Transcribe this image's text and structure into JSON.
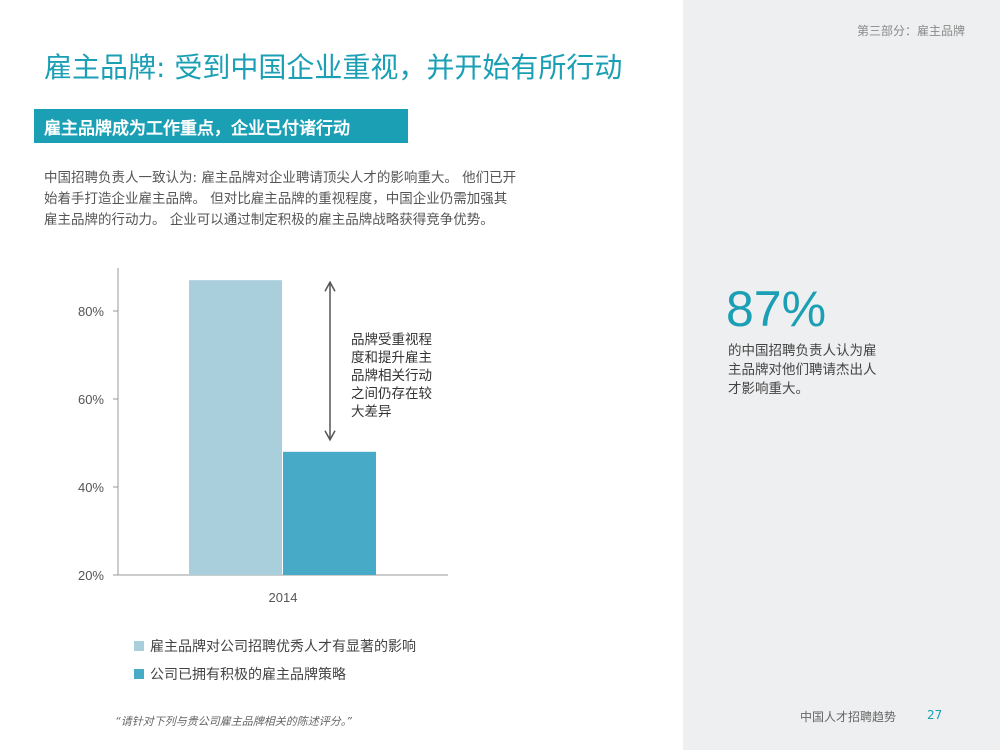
{
  "header": {
    "section_label": "第三部分：雇主品牌",
    "title": "雇主品牌: 受到中国企业重视，并开始有所行动",
    "subhead": "雇主品牌成为工作重点，企业已付诸行动"
  },
  "body_lines": [
    "中国招聘负责人一致认为: 雇主品牌对企业聘请顶尖人才的影响重大。 他们已开",
    "始着手打造企业雇主品牌。 但对比雇主品牌的重视程度，中国企业仍需加强其",
    "雇主品牌的行动力。 企业可以通过制定积极的雇主品牌战略获得竞争优势。"
  ],
  "stat": {
    "value": "87%",
    "lines": [
      "的中国招聘负责人认为雇",
      "主品牌对他们聘请杰出人",
      "才影响重大。"
    ]
  },
  "annotation_lines": [
    "品牌受重视程",
    "度和提升雇主",
    "品牌相关行动",
    "之间仍存在较",
    "大差异"
  ],
  "footnote": "“请针对下列与贵公司雇主品牌相关的陈述评分。”",
  "footer": {
    "title": "中国人才招聘趋势",
    "page": "27"
  },
  "chart_data": {
    "type": "bar",
    "categories": [
      "2014"
    ],
    "series": [
      {
        "name": "雇主品牌对公司招聘优秀人才有显著的影响",
        "values": [
          87
        ],
        "color": "#a9cfdc"
      },
      {
        "name": "公司已拥有积极的雇主品牌策略",
        "values": [
          48
        ],
        "color": "#47aac6"
      }
    ],
    "ylim": [
      20,
      90
    ],
    "yticks": [
      20,
      40,
      60,
      80
    ],
    "ytick_labels": [
      "20%",
      "40%",
      "60%",
      "80%"
    ],
    "legend_position": "bottom-left",
    "grid": false
  }
}
